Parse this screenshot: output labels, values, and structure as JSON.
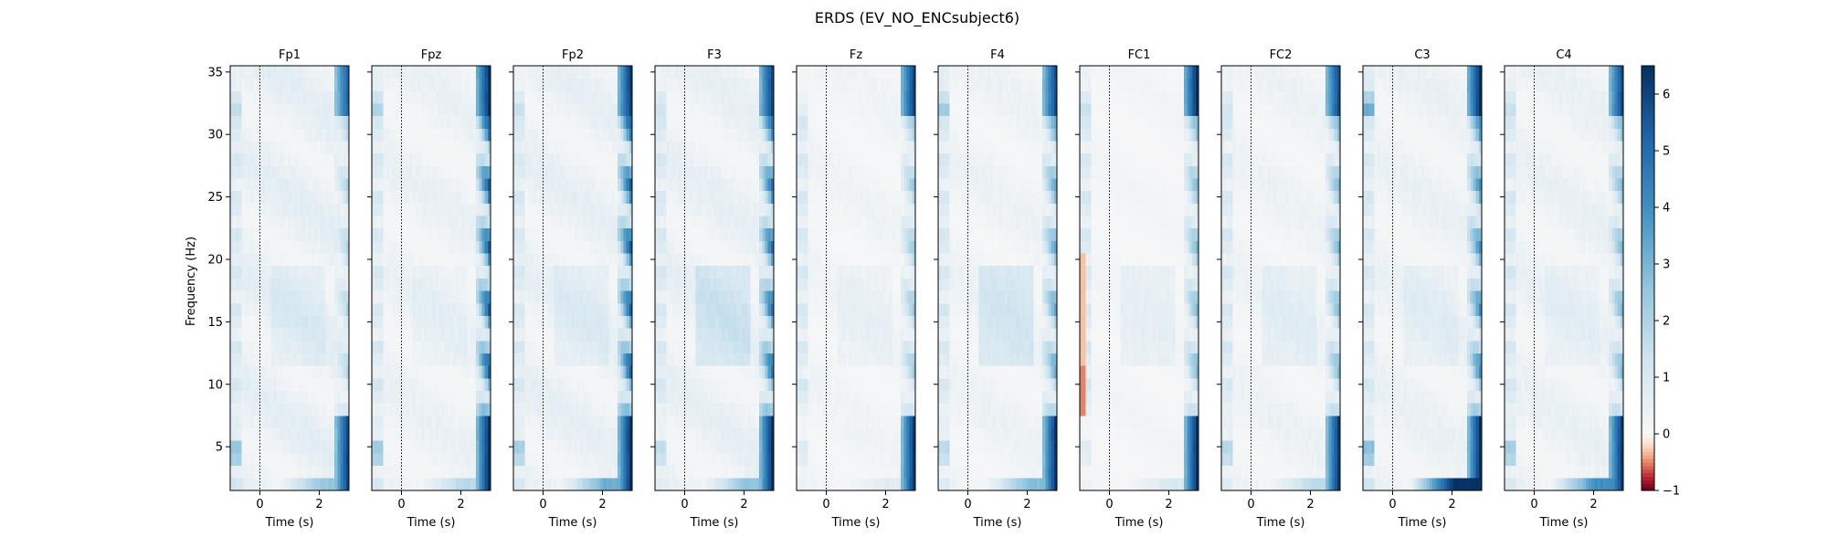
{
  "figure": {
    "title": "ERDS (EV_NO_ENCsubject6)"
  },
  "chart_data": {
    "type": "heatmap",
    "title": "ERDS (EV_NO_ENCsubject6)",
    "xlabel": "Time (s)",
    "ylabel": "Frequency (Hz)",
    "xlim": [
      -1,
      3
    ],
    "ylim": [
      1.5,
      35.5
    ],
    "x_ticks": [
      0,
      2
    ],
    "y_ticks": [
      5,
      10,
      15,
      20,
      25,
      30,
      35
    ],
    "event_marker_time": 0,
    "grid": false,
    "colorbar": {
      "colormap": "RdBu_r",
      "vmin": -1,
      "vmax": 6.5,
      "ticks": [
        -1,
        0,
        1,
        2,
        3,
        4,
        5,
        6
      ]
    },
    "panels": [
      {
        "channel": "Fp1",
        "base": 0.7,
        "early_low": 2.8,
        "early_high": 1.8,
        "late_low": 6.0,
        "late_high": 5.2,
        "late_mid": 2.0,
        "mid_alpha": 0.6,
        "bottom_row": 2.5,
        "neg_high": 0,
        "neg_low": 0
      },
      {
        "channel": "Fpz",
        "base": 0.5,
        "early_low": 2.6,
        "early_high": 2.2,
        "late_low": 6.5,
        "late_high": 6.4,
        "late_mid": 5.5,
        "mid_alpha": 0.3,
        "bottom_row": 1.8,
        "neg_high": 0,
        "neg_low": 0
      },
      {
        "channel": "Fp2",
        "base": 0.6,
        "early_low": 2.4,
        "early_high": 1.5,
        "late_low": 6.5,
        "late_high": 6.2,
        "late_mid": 5.5,
        "mid_alpha": 0.6,
        "bottom_row": 3.2,
        "neg_high": 0,
        "neg_low": 0
      },
      {
        "channel": "F3",
        "base": 0.6,
        "early_low": 1.8,
        "early_high": 1.5,
        "late_low": 6.5,
        "late_high": 6.0,
        "late_mid": 5.0,
        "mid_alpha": 1.3,
        "bottom_row": 2.6,
        "neg_high": 0,
        "neg_low": 0
      },
      {
        "channel": "Fz",
        "base": 0.3,
        "early_low": 0.9,
        "early_high": 0.7,
        "late_low": 6.3,
        "late_high": 6.0,
        "late_mid": 2.5,
        "mid_alpha": 0.4,
        "bottom_row": 0.8,
        "neg_high": 0,
        "neg_low": 0
      },
      {
        "channel": "F4",
        "base": 0.4,
        "early_low": 1.9,
        "early_high": 2.4,
        "late_low": 6.3,
        "late_high": 5.8,
        "late_mid": 3.5,
        "mid_alpha": 1.3,
        "bottom_row": 2.8,
        "neg_high": 0,
        "neg_low": 0
      },
      {
        "channel": "FC1",
        "base": 0.2,
        "early_low": 0.9,
        "early_high": 1.6,
        "late_low": 6.5,
        "late_high": 6.5,
        "late_mid": 3.0,
        "mid_alpha": 0.6,
        "bottom_row": 1.0,
        "neg_high": -0.3,
        "neg_low": -0.5
      },
      {
        "channel": "FC2",
        "base": 0.4,
        "early_low": 2.0,
        "early_high": 1.3,
        "late_low": 6.2,
        "late_high": 5.8,
        "late_mid": 3.0,
        "mid_alpha": 0.6,
        "bottom_row": 1.8,
        "neg_high": 0,
        "neg_low": 0
      },
      {
        "channel": "C3",
        "base": 0.5,
        "early_low": 3.0,
        "early_high": 3.5,
        "late_low": 6.5,
        "late_high": 6.5,
        "late_mid": 4.2,
        "mid_alpha": 0.5,
        "bottom_row": 6.5,
        "neg_high": 0,
        "neg_low": 0
      },
      {
        "channel": "C4",
        "base": 0.5,
        "early_low": 2.5,
        "early_high": 1.6,
        "late_low": 6.3,
        "late_high": 5.8,
        "late_mid": 3.0,
        "mid_alpha": 0.4,
        "bottom_row": 4.0,
        "neg_high": 0,
        "neg_low": 0
      }
    ]
  }
}
